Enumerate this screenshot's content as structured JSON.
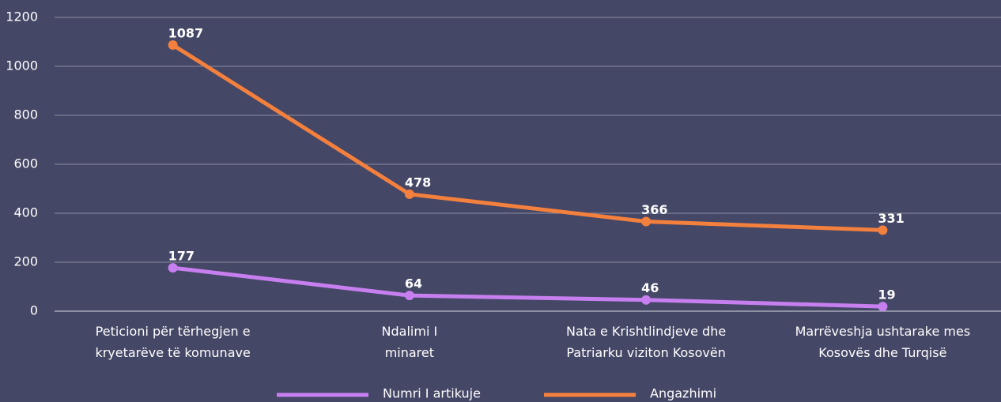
{
  "chart_data": {
    "type": "line",
    "categories": [
      "Peticioni për tërhegjen e\nkryetarëve të komunave",
      "Ndalimi I\nminaret",
      "Nata e Krishtlindjeve dhe\nPatriarku viziton Kosovën",
      "Marrëveshja ushtarake mes\nKosovës dhe Turqisë"
    ],
    "series": [
      {
        "name": "Numri I artikuje",
        "color": "#c77ff0",
        "values": [
          177,
          64,
          46,
          19
        ]
      },
      {
        "name": "Angazhimi",
        "color": "#f4803e",
        "values": [
          1087,
          478,
          366,
          331
        ]
      }
    ],
    "ylim": [
      0,
      1200
    ],
    "yticks": [
      0,
      200,
      400,
      600,
      800,
      1000,
      1200
    ],
    "grid": true
  }
}
